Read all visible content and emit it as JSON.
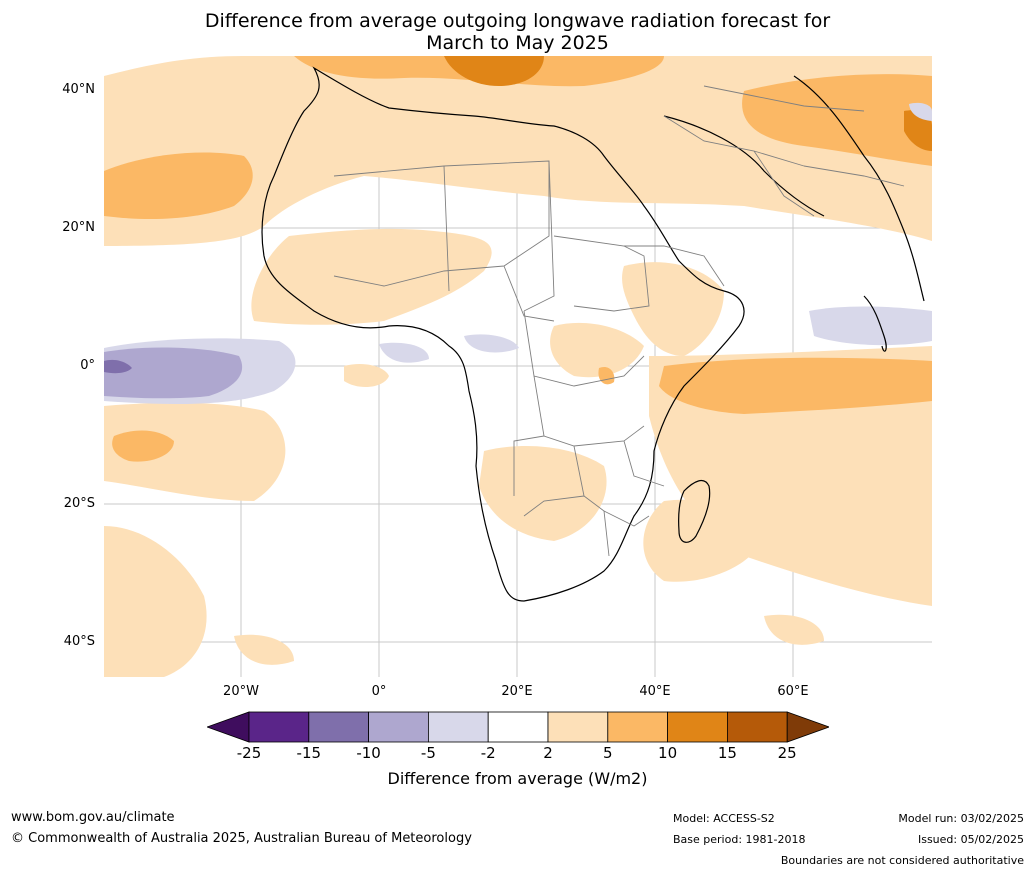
{
  "title_line1": "Difference from average outgoing longwave radiation forecast for",
  "title_line2": "March to May 2025",
  "lat_labels": [
    "40°N",
    "20°N",
    "0°",
    "20°S",
    "40°S"
  ],
  "lon_labels": [
    "20°W",
    "0°",
    "20°E",
    "40°E",
    "60°E"
  ],
  "colorbar": {
    "ticks": [
      "-25",
      "-15",
      "-10",
      "-5",
      "-2",
      "2",
      "5",
      "10",
      "15",
      "25"
    ],
    "colors": [
      "#3f0d5e",
      "#5a2589",
      "#7f6fab",
      "#aea7cf",
      "#d8d8ea",
      "#ffffff",
      "#fde0b8",
      "#fbb865",
      "#e08517",
      "#b55a09",
      "#7f3b08"
    ],
    "label": "Difference from average (W/m2)"
  },
  "footer": {
    "website": "www.bom.gov.au/climate",
    "copyright": "© Commonwealth of Australia 2025, Australian Bureau of Meteorology",
    "model": "Model: ACCESS-S2",
    "base_period": "Base period: 1981-2018",
    "model_run": "Model run: 03/02/2025",
    "issued": "Issued: 05/02/2025",
    "disclaimer": "Boundaries are not considered authoritative"
  }
}
